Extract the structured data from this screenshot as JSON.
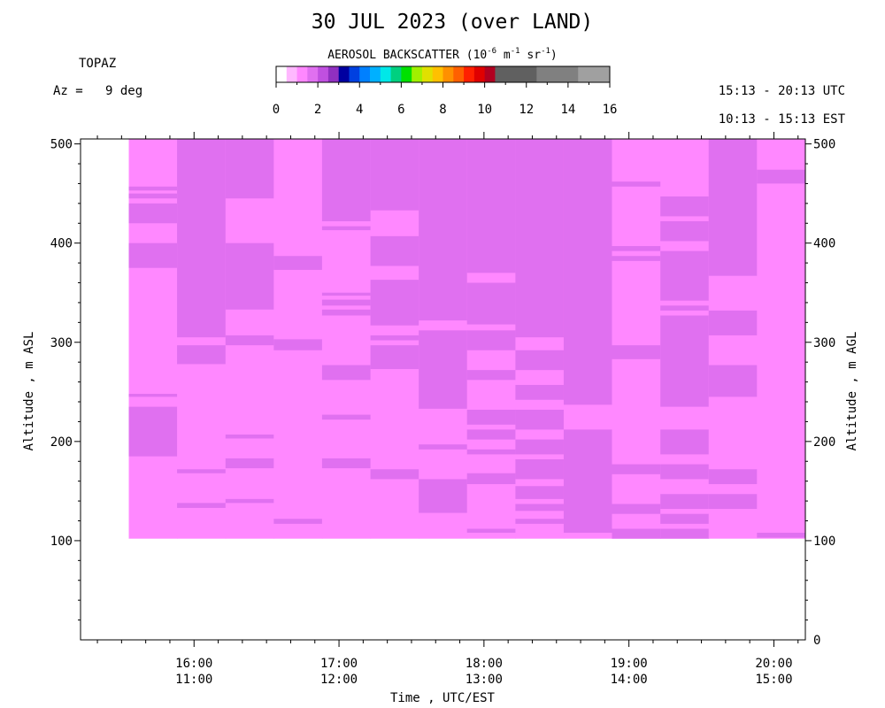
{
  "chart_data": {
    "type": "heatmap",
    "title": "30 JUL 2023 (over LAND)",
    "instrument": "TOPAZ",
    "azimuth_label": "Az =   9 deg",
    "time_range_utc": "15:13 - 20:13 UTC",
    "time_range_est": "10:13 - 15:13 EST",
    "colorbar": {
      "label_main": "AEROSOL BACKSCATTER (10",
      "label_exp1": "-6",
      "label_unit_m": " m",
      "label_exp2": "-1",
      "label_unit_sr": " sr",
      "label_exp3": "-1",
      "label_close": ")",
      "fine_step": 0.5,
      "fine_colors": [
        "#ffffff",
        "#ffb8ff",
        "#ff88ff",
        "#e070f0",
        "#c050e0",
        "#9030c0",
        "#0000a0",
        "#0040e0",
        "#0080ff",
        "#00b0ff",
        "#00e8e8",
        "#00d080",
        "#00e000",
        "#a0f000",
        "#e0e000",
        "#ffc000",
        "#ff9000",
        "#ff6000",
        "#ff2000",
        "#e00000",
        "#b00020"
      ],
      "coarse_colors": [
        "#606060",
        "#808080",
        "#a0a0a0",
        "#c0c0c0"
      ],
      "coarse_step": 2,
      "ticks": [
        0,
        2,
        4,
        6,
        8,
        10,
        12,
        14,
        16
      ]
    },
    "levels": {
      "low": {
        "backscatter_range": [
          0.5,
          1.0
        ],
        "color": "#ff88ff"
      },
      "high": {
        "backscatter_range": [
          1.0,
          1.5
        ],
        "color": "#e070f0"
      }
    },
    "xlabel": "Time , UTC/EST",
    "xlim_utc_hours": [
      15.217,
      20.217
    ],
    "x_ticks": [
      {
        "t": 16,
        "utc": "16:00",
        "est": "11:00"
      },
      {
        "t": 17,
        "utc": "17:00",
        "est": "12:00"
      },
      {
        "t": 18,
        "utc": "18:00",
        "est": "13:00"
      },
      {
        "t": 19,
        "utc": "19:00",
        "est": "14:00"
      },
      {
        "t": 20,
        "utc": "20:00",
        "est": "15:00"
      }
    ],
    "ylabel_left": "Altitude , m ASL",
    "ylabel_right": "Altitude , m AGL",
    "left_axis": {
      "ylim": [
        0,
        505
      ],
      "ticks": [
        100,
        200,
        300,
        400,
        500
      ]
    },
    "right_axis": {
      "ylim": [
        0,
        505
      ],
      "ticks": [
        0,
        100,
        200,
        300,
        400,
        500
      ]
    },
    "columns": [
      {
        "t0": 15.55,
        "t1": 15.883,
        "high": [
          [
            185,
            235
          ],
          [
            245,
            248
          ],
          [
            375,
            400
          ],
          [
            420,
            440
          ],
          [
            445,
            450
          ],
          [
            453,
            457
          ]
        ]
      },
      {
        "t0": 15.883,
        "t1": 16.217,
        "high": [
          [
            133,
            138
          ],
          [
            168,
            172
          ],
          [
            278,
            297
          ],
          [
            305,
            510
          ]
        ]
      },
      {
        "t0": 16.217,
        "t1": 16.55,
        "high": [
          [
            138,
            142
          ],
          [
            173,
            183
          ],
          [
            203,
            207
          ],
          [
            297,
            307
          ],
          [
            333,
            400
          ],
          [
            445,
            505
          ]
        ]
      },
      {
        "t0": 16.55,
        "t1": 16.883,
        "high": [
          [
            117,
            122
          ],
          [
            292,
            303
          ],
          [
            373,
            387
          ]
        ]
      },
      {
        "t0": 16.883,
        "t1": 17.217,
        "high": [
          [
            173,
            183
          ],
          [
            222,
            227
          ],
          [
            262,
            277
          ],
          [
            327,
            333
          ],
          [
            337,
            343
          ],
          [
            347,
            350
          ],
          [
            413,
            417
          ],
          [
            422,
            510
          ]
        ]
      },
      {
        "t0": 17.217,
        "t1": 17.55,
        "high": [
          [
            162,
            172
          ],
          [
            273,
            297
          ],
          [
            302,
            307
          ],
          [
            317,
            363
          ],
          [
            377,
            407
          ],
          [
            433,
            510
          ]
        ]
      },
      {
        "t0": 17.55,
        "t1": 17.883,
        "high": [
          [
            128,
            162
          ],
          [
            192,
            197
          ],
          [
            233,
            312
          ],
          [
            322,
            510
          ]
        ]
      },
      {
        "t0": 17.883,
        "t1": 18.217,
        "high": [
          [
            108,
            112
          ],
          [
            157,
            168
          ],
          [
            187,
            192
          ],
          [
            202,
            212
          ],
          [
            217,
            232
          ],
          [
            262,
            272
          ],
          [
            292,
            312
          ],
          [
            318,
            360
          ],
          [
            370,
            510
          ]
        ]
      },
      {
        "t0": 18.217,
        "t1": 18.55,
        "high": [
          [
            117,
            122
          ],
          [
            130,
            137
          ],
          [
            142,
            155
          ],
          [
            162,
            182
          ],
          [
            187,
            202
          ],
          [
            212,
            232
          ],
          [
            242,
            257
          ],
          [
            272,
            292
          ],
          [
            305,
            510
          ]
        ]
      },
      {
        "t0": 18.55,
        "t1": 18.883,
        "high": [
          [
            108,
            212
          ],
          [
            237,
            510
          ]
        ]
      },
      {
        "t0": 18.883,
        "t1": 19.217,
        "high": [
          [
            102,
            112
          ],
          [
            127,
            137
          ],
          [
            167,
            177
          ],
          [
            283,
            297
          ],
          [
            382,
            387
          ],
          [
            392,
            397
          ],
          [
            457,
            462
          ]
        ]
      },
      {
        "t0": 19.217,
        "t1": 19.55,
        "high": [
          [
            102,
            112
          ],
          [
            117,
            127
          ],
          [
            132,
            147
          ],
          [
            162,
            177
          ],
          [
            187,
            212
          ],
          [
            235,
            327
          ],
          [
            332,
            337
          ],
          [
            342,
            392
          ],
          [
            402,
            422
          ],
          [
            427,
            447
          ]
        ]
      },
      {
        "t0": 19.55,
        "t1": 19.883,
        "high": [
          [
            132,
            147
          ],
          [
            157,
            172
          ],
          [
            245,
            277
          ],
          [
            307,
            332
          ],
          [
            367,
            510
          ]
        ]
      },
      {
        "t0": 19.883,
        "t1": 20.217,
        "high": [
          [
            103,
            108
          ],
          [
            460,
            474
          ]
        ]
      }
    ],
    "data_bottom_m": 102,
    "data_top_m": 505
  }
}
